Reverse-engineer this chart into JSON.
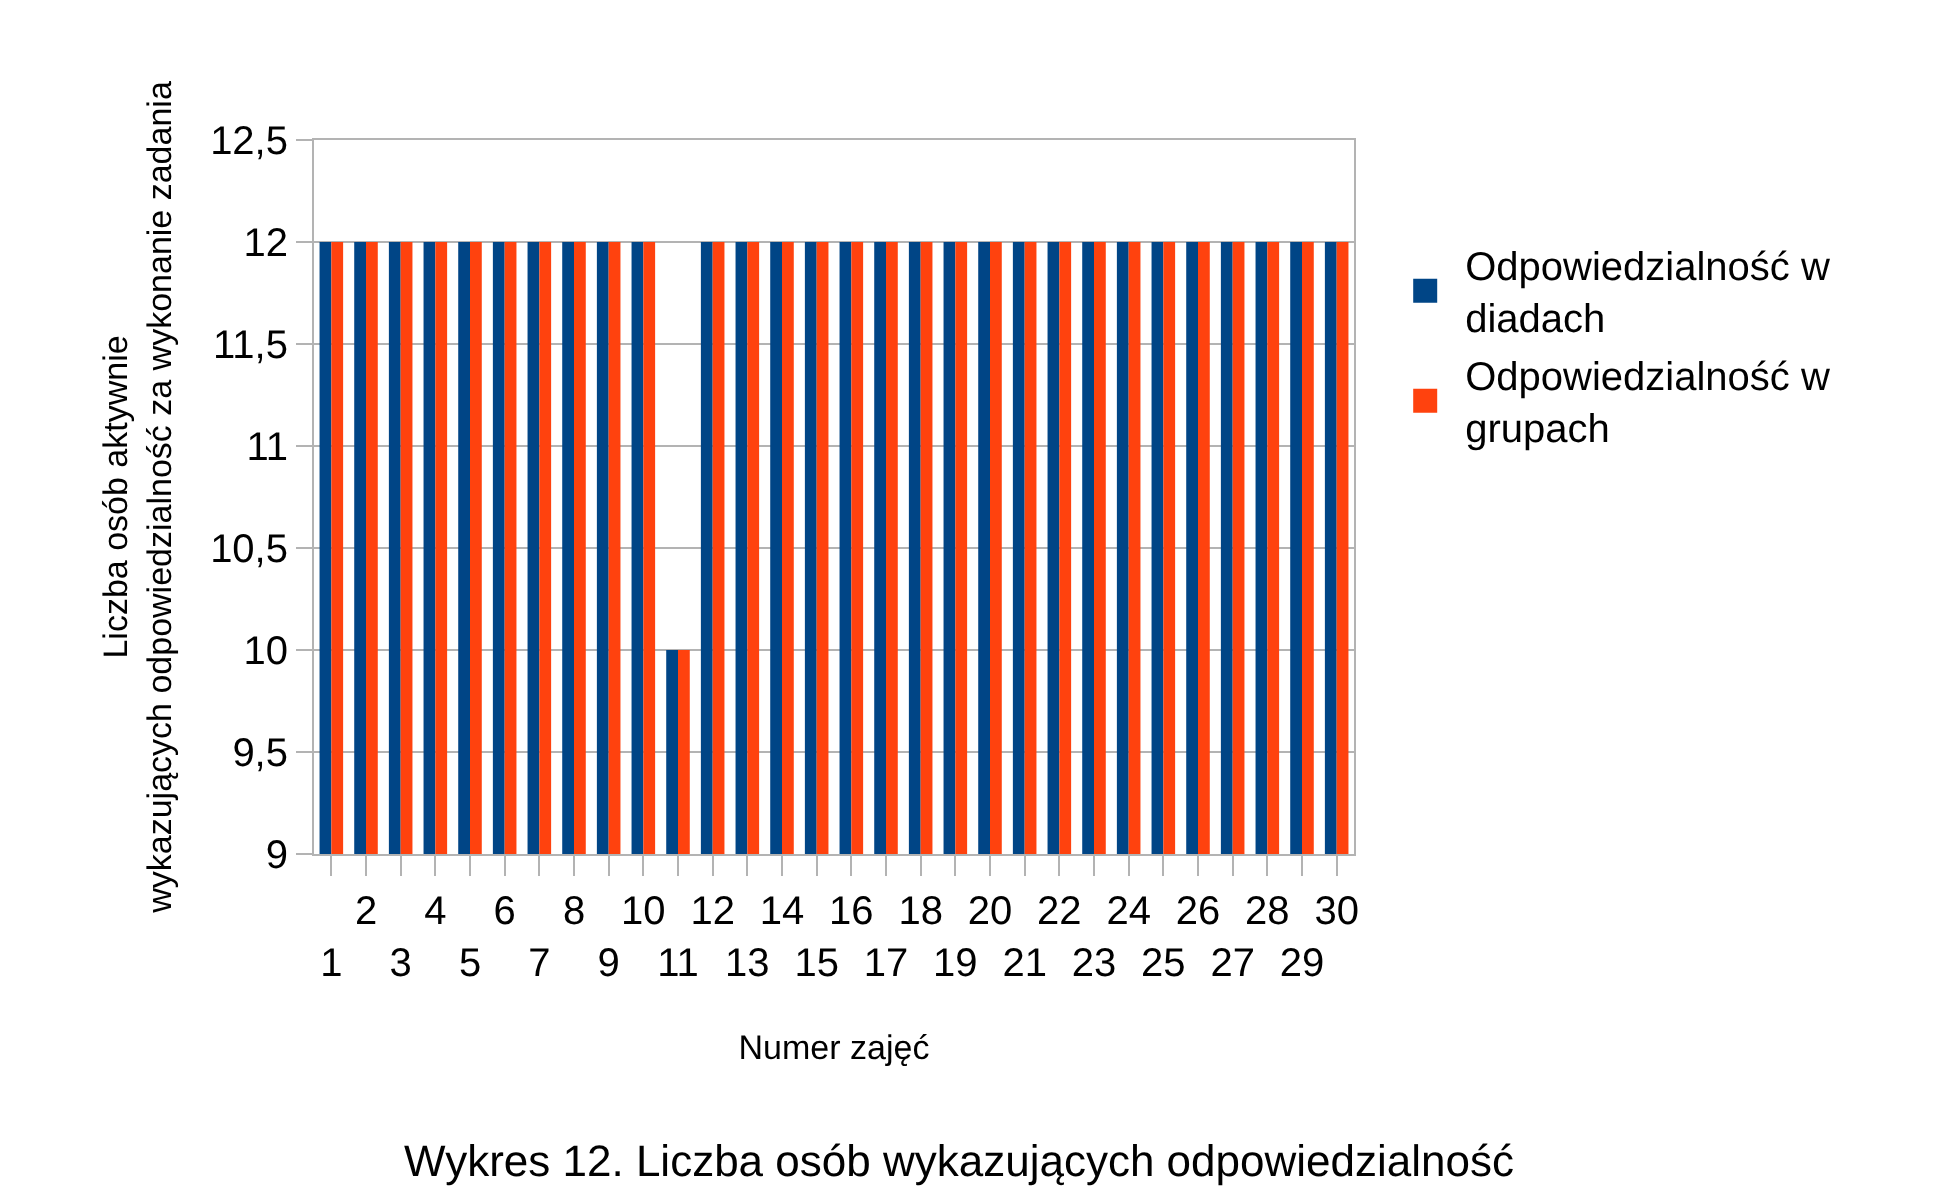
{
  "chart_data": {
    "type": "bar",
    "xlabel": "Numer zajęć",
    "ylabel": "Liczba osób aktywnie\nwykazujących odpowiedzialność za wykonanie zadania",
    "categories": [
      "1",
      "2",
      "3",
      "4",
      "5",
      "6",
      "7",
      "8",
      "9",
      "10",
      "11",
      "12",
      "13",
      "14",
      "15",
      "16",
      "17",
      "18",
      "19",
      "20",
      "21",
      "22",
      "23",
      "24",
      "25",
      "26",
      "27",
      "28",
      "29",
      "30"
    ],
    "series": [
      {
        "name": "Odpowiedzialność w diadach",
        "color": "#004586",
        "values": [
          12,
          12,
          12,
          12,
          12,
          12,
          12,
          12,
          12,
          12,
          10,
          12,
          12,
          12,
          12,
          12,
          12,
          12,
          12,
          12,
          12,
          12,
          12,
          12,
          12,
          12,
          12,
          12,
          12,
          12
        ]
      },
      {
        "name": "Odpowiedzialność w grupach",
        "color": "#ff420e",
        "values": [
          12,
          12,
          12,
          12,
          12,
          12,
          12,
          12,
          12,
          12,
          10,
          12,
          12,
          12,
          12,
          12,
          12,
          12,
          12,
          12,
          12,
          12,
          12,
          12,
          12,
          12,
          12,
          12,
          12,
          12
        ]
      }
    ],
    "ylim": [
      9,
      12.5
    ],
    "yticks": [
      {
        "value": 9,
        "label": "9"
      },
      {
        "value": 9.5,
        "label": "9,5"
      },
      {
        "value": 10,
        "label": "10"
      },
      {
        "value": 10.5,
        "label": "10,5"
      },
      {
        "value": 11,
        "label": "11"
      },
      {
        "value": 11.5,
        "label": "11,5"
      },
      {
        "value": 12,
        "label": "12"
      },
      {
        "value": 12.5,
        "label": "12,5"
      }
    ],
    "grid": "y",
    "legend": "right",
    "annotations": [
      "Wykres 12. Liczba osób wykazujących odpowiedzialność"
    ]
  }
}
